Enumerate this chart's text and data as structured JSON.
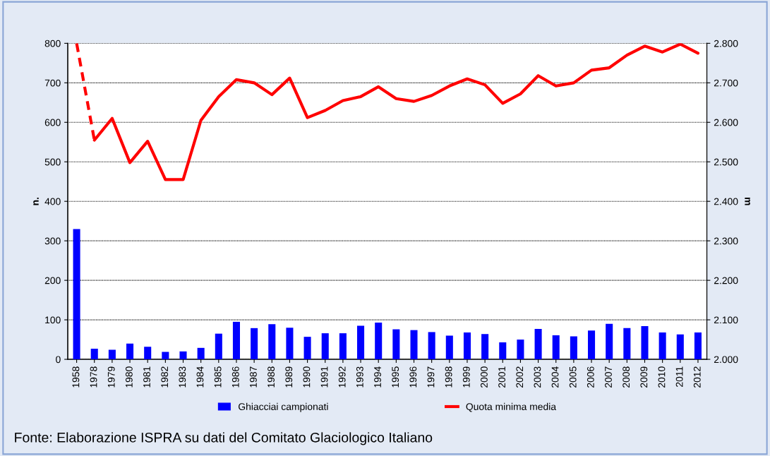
{
  "chart_data": {
    "type": "bar",
    "categories": [
      "1958",
      "1978",
      "1979",
      "1980",
      "1981",
      "1982",
      "1983",
      "1984",
      "1985",
      "1986",
      "1987",
      "1988",
      "1989",
      "1990",
      "1991",
      "1992",
      "1993",
      "1994",
      "1995",
      "1996",
      "1997",
      "1998",
      "1999",
      "2000",
      "2001",
      "2002",
      "2003",
      "2004",
      "2005",
      "2006",
      "2007",
      "2008",
      "2009",
      "2010",
      "2011",
      "2012"
    ],
    "series": [
      {
        "name": "Ghiacciai campionati",
        "color": "#0000ff",
        "values": [
          330,
          27,
          24,
          40,
          32,
          19,
          20,
          29,
          65,
          95,
          79,
          89,
          80,
          57,
          66,
          66,
          85,
          93,
          76,
          74,
          69,
          60,
          68,
          64,
          43,
          50,
          77,
          61,
          58,
          73,
          90,
          79,
          84,
          68,
          63,
          68
        ]
      },
      {
        "name": "Quota minima media",
        "type": "line",
        "axis": "y2",
        "color": "#ff0000",
        "line_style": "solid",
        "values": [
          null,
          2555,
          2610,
          2498,
          2552,
          2455,
          2455,
          2605,
          2665,
          2708,
          2700,
          2670,
          2712,
          2612,
          2630,
          2655,
          2665,
          2690,
          2660,
          2653,
          2668,
          2692,
          2710,
          2695,
          2648,
          2672,
          2718,
          2692,
          2700,
          2732,
          2738,
          2770,
          2793,
          2778,
          2798,
          2775
        ]
      },
      {
        "type": "line",
        "axis": "y2",
        "color": "#ff0000",
        "line_style": "dashed",
        "values": [
          2800,
          2555,
          null,
          null,
          null,
          null,
          null,
          null,
          null,
          null,
          null,
          null,
          null,
          null,
          null,
          null,
          null,
          null,
          null,
          null,
          null,
          null,
          null,
          null,
          null,
          null,
          null,
          null,
          null,
          null,
          null,
          null,
          null,
          null,
          null,
          null
        ]
      }
    ],
    "ylabel": "n.",
    "y2label": "m",
    "ylim": [
      0,
      800
    ],
    "yticks": [
      0,
      100,
      200,
      300,
      400,
      500,
      600,
      700,
      800
    ],
    "y2lim": [
      2000,
      2800
    ],
    "y2ticks": [
      {
        "value": 2000,
        "label": "2.000"
      },
      {
        "value": 2100,
        "label": "2.100"
      },
      {
        "value": 2200,
        "label": "2.200"
      },
      {
        "value": 2300,
        "label": "2.300"
      },
      {
        "value": 2400,
        "label": "2.400"
      },
      {
        "value": 2500,
        "label": "2.500"
      },
      {
        "value": 2600,
        "label": "2.600"
      },
      {
        "value": 2700,
        "label": "2.700"
      },
      {
        "value": 2800,
        "label": "2.800"
      }
    ],
    "grid": "y",
    "legend": "bottom",
    "annotations": [
      "Fonte: Elaborazione ISPRA su dati del Comitato Glaciologico Italiano"
    ]
  }
}
